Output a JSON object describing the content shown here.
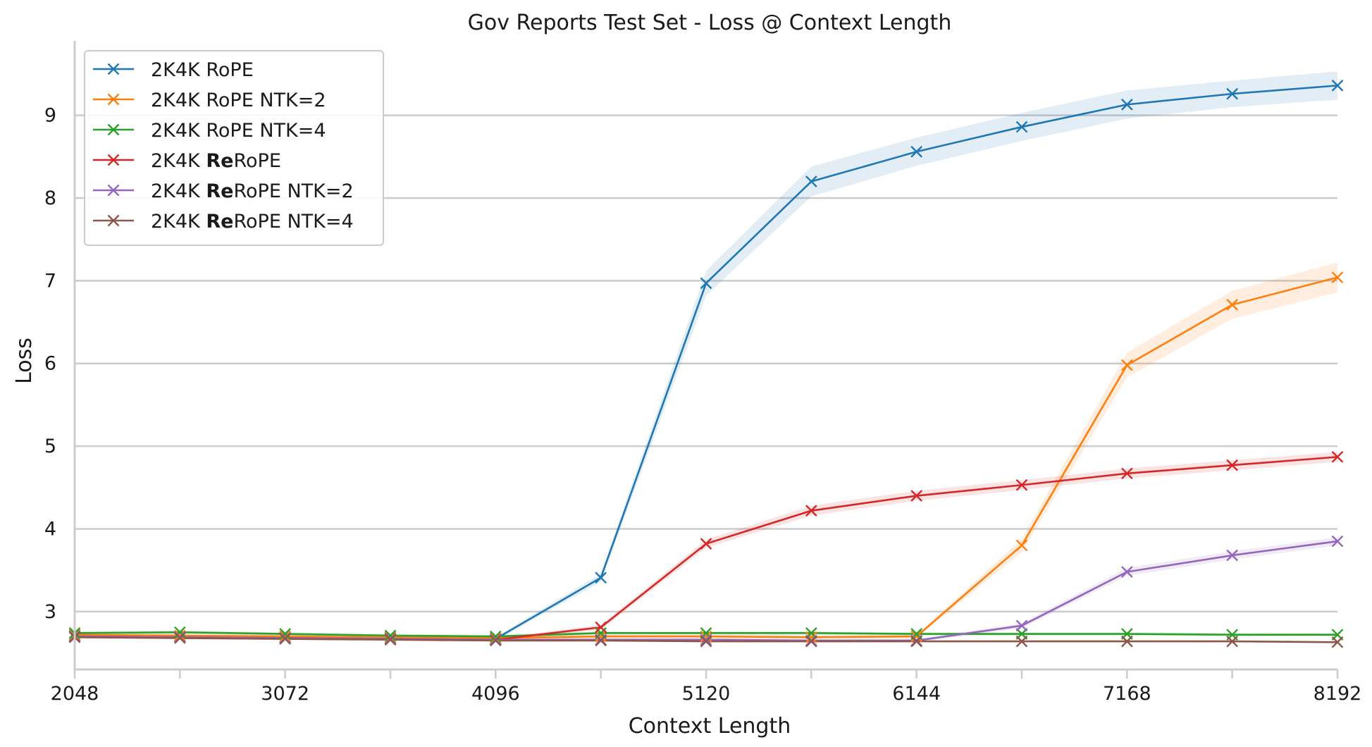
{
  "chart_data": {
    "type": "line",
    "title": "Gov Reports Test Set - Loss @ Context Length",
    "xlabel": "Context Length",
    "ylabel": "Loss",
    "x": [
      2048,
      2560,
      3072,
      3584,
      4096,
      4608,
      5120,
      5632,
      6144,
      6656,
      7168,
      7680,
      8192
    ],
    "x_ticks": [
      2048,
      3072,
      4096,
      5120,
      6144,
      7168,
      8192
    ],
    "x_tick_labels": [
      "2048",
      "3072",
      "4096",
      "5120",
      "6144",
      "7168",
      "8192"
    ],
    "y_ticks": [
      3,
      4,
      5,
      6,
      7,
      8,
      9
    ],
    "y_tick_labels": [
      "3",
      "4",
      "5",
      "6",
      "7",
      "8",
      "9"
    ],
    "xlim": [
      2048,
      8192
    ],
    "ylim": [
      2.3,
      9.9
    ],
    "grid": "horizontal",
    "legend_position": "top-left",
    "series": [
      {
        "name": "2K4K RoPE",
        "legend_prefix": "2K4K ",
        "legend_bold": "",
        "legend_suffix": "RoPE",
        "color": "#1f77b4",
        "values": [
          2.71,
          2.7,
          2.69,
          2.68,
          2.67,
          3.41,
          6.97,
          8.2,
          8.56,
          8.86,
          9.13,
          9.26,
          9.36
        ],
        "band": [
          0.02,
          0.02,
          0.02,
          0.02,
          0.02,
          0.05,
          0.15,
          0.18,
          0.17,
          0.17,
          0.17,
          0.16,
          0.17
        ]
      },
      {
        "name": "2K4K RoPE NTK=2",
        "legend_prefix": "2K4K ",
        "legend_bold": "",
        "legend_suffix": "RoPE NTK=2",
        "color": "#ff7f0e",
        "values": [
          2.72,
          2.71,
          2.7,
          2.69,
          2.68,
          2.7,
          2.7,
          2.69,
          2.7,
          3.8,
          5.98,
          6.71,
          7.04
        ],
        "band": [
          0.02,
          0.02,
          0.02,
          0.02,
          0.02,
          0.02,
          0.02,
          0.02,
          0.02,
          0.08,
          0.15,
          0.17,
          0.18
        ]
      },
      {
        "name": "2K4K RoPE NTK=4",
        "legend_prefix": "2K4K ",
        "legend_bold": "",
        "legend_suffix": "RoPE NTK=4",
        "color": "#2ca02c",
        "values": [
          2.74,
          2.75,
          2.73,
          2.71,
          2.7,
          2.74,
          2.74,
          2.74,
          2.73,
          2.73,
          2.73,
          2.72,
          2.72
        ],
        "band": [
          0.02,
          0.02,
          0.02,
          0.02,
          0.02,
          0.02,
          0.02,
          0.02,
          0.02,
          0.02,
          0.02,
          0.02,
          0.02
        ]
      },
      {
        "name": "2K4K ReRoPE",
        "legend_prefix": "2K4K ",
        "legend_bold": "Re",
        "legend_suffix": "RoPE",
        "color": "#d62728",
        "values": [
          2.7,
          2.69,
          2.68,
          2.67,
          2.66,
          2.81,
          3.82,
          4.22,
          4.4,
          4.53,
          4.67,
          4.77,
          4.87
        ],
        "band": [
          0.02,
          0.02,
          0.02,
          0.02,
          0.02,
          0.03,
          0.05,
          0.06,
          0.06,
          0.06,
          0.06,
          0.06,
          0.06
        ]
      },
      {
        "name": "2K4K ReRoPE NTK=2",
        "legend_prefix": "2K4K ",
        "legend_bold": "Re",
        "legend_suffix": "RoPE NTK=2",
        "color": "#9467bd",
        "values": [
          2.7,
          2.69,
          2.68,
          2.67,
          2.66,
          2.66,
          2.66,
          2.65,
          2.65,
          2.83,
          3.48,
          3.68,
          3.85
        ],
        "band": [
          0.02,
          0.02,
          0.02,
          0.02,
          0.02,
          0.02,
          0.02,
          0.02,
          0.02,
          0.03,
          0.05,
          0.05,
          0.05
        ]
      },
      {
        "name": "2K4K ReRoPE NTK=4",
        "legend_prefix": "2K4K ",
        "legend_bold": "Re",
        "legend_suffix": "RoPE NTK=4",
        "color": "#8c564b",
        "values": [
          2.69,
          2.68,
          2.67,
          2.66,
          2.65,
          2.65,
          2.64,
          2.64,
          2.64,
          2.64,
          2.64,
          2.64,
          2.63
        ],
        "band": [
          0.01,
          0.01,
          0.01,
          0.01,
          0.01,
          0.01,
          0.01,
          0.01,
          0.01,
          0.01,
          0.01,
          0.01,
          0.01
        ]
      }
    ]
  }
}
